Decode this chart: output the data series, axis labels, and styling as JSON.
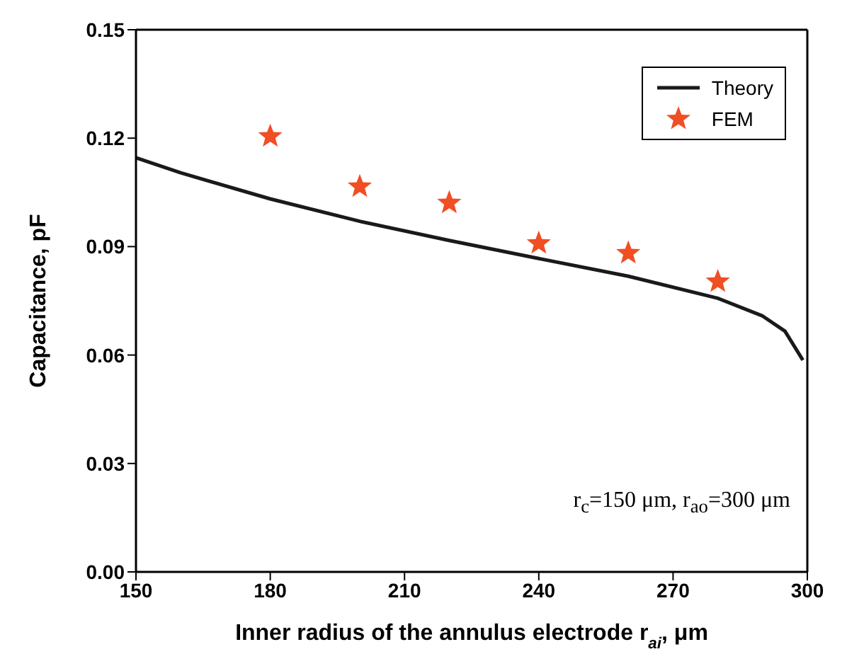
{
  "chart_data": {
    "type": "line",
    "xlabel": "Inner radius of the annulus electrode r$_{ai}$, μm",
    "ylabel": "Capacitance, pF",
    "xlim": [
      150,
      300
    ],
    "xticks": [
      150,
      180,
      210,
      240,
      270,
      300
    ],
    "ylim": [
      0,
      0.15
    ],
    "yticks": [
      {
        "value": 0,
        "label": "0.00"
      },
      0.03,
      0.06,
      0.09,
      0.12,
      0.15
    ],
    "legend": "top right",
    "annotations": [
      "r$_{c}$=150 μm, r$_{ao}$=300 μm"
    ],
    "series": [
      {
        "name": "Theory",
        "color": "#1a1a1a",
        "marker": "none",
        "line_style": "solid",
        "x": [
          150,
          160,
          180,
          200,
          220,
          240,
          260,
          280,
          290,
          295,
          299
        ],
        "values": [
          0.1146,
          0.1104,
          0.1032,
          0.097,
          0.0917,
          0.0867,
          0.0818,
          0.0757,
          0.0708,
          0.0666,
          0.0586
        ]
      },
      {
        "name": "FEM",
        "type": "scatter",
        "color": "#f04e23",
        "marker": "star",
        "x": [
          180,
          200,
          220,
          240,
          260,
          280
        ],
        "values": [
          0.1205,
          0.1066,
          0.1021,
          0.0909,
          0.0882,
          0.0803
        ]
      }
    ]
  }
}
